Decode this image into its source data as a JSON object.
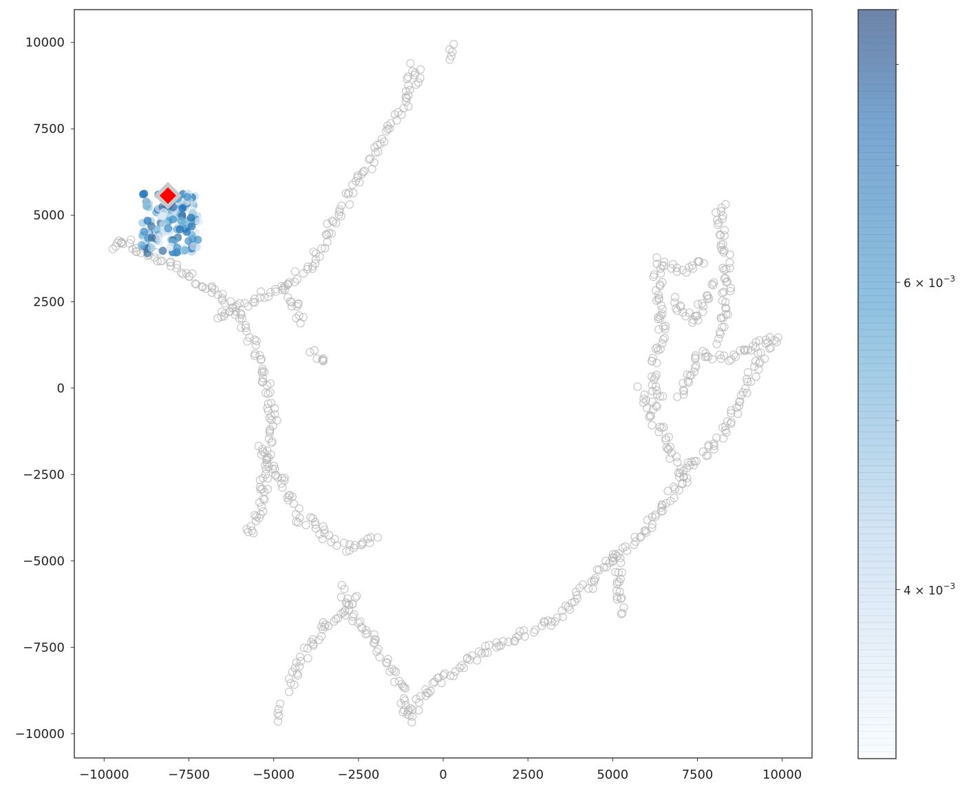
{
  "chart_data": {
    "type": "scatter",
    "title": "",
    "xlabel": "",
    "ylabel": "",
    "xlim": [
      -10880,
      10880
    ],
    "ylim": [
      -10700,
      10950
    ],
    "x_ticks": [
      {
        "value": -10000,
        "label": "−10000"
      },
      {
        "value": -7500,
        "label": "−7500"
      },
      {
        "value": -5000,
        "label": "−5000"
      },
      {
        "value": -2500,
        "label": "−2500"
      },
      {
        "value": 0,
        "label": "0"
      },
      {
        "value": 2500,
        "label": "2500"
      },
      {
        "value": 5000,
        "label": "5000"
      },
      {
        "value": 7500,
        "label": "7500"
      },
      {
        "value": 10000,
        "label": "10000"
      }
    ],
    "y_ticks": [
      {
        "value": 10000,
        "label": "10000"
      },
      {
        "value": 7500,
        "label": "7500"
      },
      {
        "value": 5000,
        "label": "5000"
      },
      {
        "value": 2500,
        "label": "2500"
      },
      {
        "value": 0,
        "label": "0"
      },
      {
        "value": -2500,
        "label": "−2500"
      },
      {
        "value": -5000,
        "label": "−5000"
      },
      {
        "value": -7500,
        "label": "−7500"
      },
      {
        "value": -10000,
        "label": "−10000"
      }
    ],
    "grid": false,
    "background_points": {
      "style": "hollow-circle",
      "color": "#b4b4b4",
      "description_paths": [
        [
          [
            -9700,
            4150
          ],
          [
            -9300,
            4100
          ],
          [
            -8900,
            3950
          ],
          [
            -8500,
            3800
          ],
          [
            -8100,
            3600
          ],
          [
            -7700,
            3400
          ],
          [
            -7300,
            3150
          ],
          [
            -6900,
            2900
          ],
          [
            -6500,
            2600
          ],
          [
            -6200,
            2300
          ],
          [
            -5900,
            1900
          ],
          [
            -5650,
            1400
          ],
          [
            -5450,
            900
          ],
          [
            -5300,
            400
          ],
          [
            -5200,
            0
          ],
          [
            -5100,
            -400
          ],
          [
            -5000,
            -800
          ],
          [
            -5050,
            -1300
          ],
          [
            -5150,
            -1800
          ],
          [
            -5250,
            -2300
          ],
          [
            -5300,
            -2800
          ],
          [
            -5350,
            -3300
          ],
          [
            -5450,
            -3800
          ],
          [
            -5600,
            -4100
          ],
          [
            -5900,
            -4250
          ]
        ],
        [
          [
            -6700,
            2100
          ],
          [
            -6200,
            2250
          ],
          [
            -5600,
            2550
          ],
          [
            -5000,
            2750
          ],
          [
            -4600,
            3000
          ],
          [
            -4200,
            3300
          ],
          [
            -3900,
            3550
          ],
          [
            -3700,
            3900
          ],
          [
            -3400,
            4500
          ],
          [
            -3100,
            5000
          ],
          [
            -2800,
            5500
          ],
          [
            -2500,
            6000
          ],
          [
            -2200,
            6450
          ],
          [
            -1900,
            7000
          ],
          [
            -1600,
            7500
          ],
          [
            -1300,
            8000
          ],
          [
            -1000,
            8500
          ],
          [
            -800,
            9000
          ],
          [
            -700,
            9300
          ]
        ],
        [
          [
            -4800,
            2800
          ],
          [
            -4500,
            2550
          ],
          [
            -4300,
            2300
          ],
          [
            -4150,
            1900
          ]
        ],
        [
          [
            -3900,
            1050
          ],
          [
            -3650,
            950
          ],
          [
            -3350,
            850
          ]
        ],
        [
          [
            -5400,
            -1800
          ],
          [
            -5100,
            -2200
          ],
          [
            -4800,
            -2600
          ],
          [
            -4600,
            -3000
          ],
          [
            -4500,
            -3350
          ],
          [
            -4300,
            -3700
          ],
          [
            -4100,
            -4000
          ]
        ],
        [
          [
            -3900,
            -3700
          ],
          [
            -3700,
            -4000
          ],
          [
            -3500,
            -4250
          ],
          [
            -3300,
            -4450
          ],
          [
            -3050,
            -4600
          ],
          [
            -2800,
            -4600
          ],
          [
            -2500,
            -4550
          ],
          [
            -2200,
            -4450
          ],
          [
            -1950,
            -4350
          ]
        ],
        [
          [
            -4550,
            -8700
          ],
          [
            -4350,
            -8200
          ],
          [
            -4100,
            -7700
          ],
          [
            -3800,
            -7250
          ],
          [
            -3550,
            -6900
          ],
          [
            -3300,
            -6700
          ],
          [
            -3000,
            -6500
          ],
          [
            -2800,
            -6300
          ],
          [
            -2600,
            -6000
          ]
        ],
        [
          [
            -3000,
            -5800
          ],
          [
            -2800,
            -6200
          ],
          [
            -2600,
            -6600
          ],
          [
            -2300,
            -7000
          ],
          [
            -2000,
            -7300
          ],
          [
            -1800,
            -7650
          ],
          [
            -1600,
            -8000
          ],
          [
            -1400,
            -8300
          ],
          [
            -1200,
            -8700
          ],
          [
            -1100,
            -9100
          ],
          [
            -1000,
            -9500
          ],
          [
            -950,
            -9700
          ]
        ],
        [
          [
            -950,
            -9500
          ],
          [
            -750,
            -9100
          ],
          [
            -550,
            -8800
          ],
          [
            -300,
            -8600
          ],
          [
            -50,
            -8400
          ],
          [
            300,
            -8200
          ],
          [
            700,
            -7900
          ],
          [
            1200,
            -7600
          ],
          [
            1700,
            -7400
          ],
          [
            2200,
            -7200
          ],
          [
            2700,
            -7000
          ],
          [
            3200,
            -6700
          ],
          [
            3700,
            -6300
          ],
          [
            4100,
            -5900
          ],
          [
            4500,
            -5500
          ],
          [
            4850,
            -5100
          ],
          [
            5100,
            -4850
          ],
          [
            5500,
            -4600
          ],
          [
            5900,
            -4200
          ],
          [
            6200,
            -3800
          ],
          [
            6500,
            -3400
          ],
          [
            6800,
            -3000
          ],
          [
            7100,
            -2600
          ],
          [
            7400,
            -2200
          ],
          [
            7700,
            -1900
          ],
          [
            8000,
            -1600
          ],
          [
            8300,
            -1200
          ],
          [
            8550,
            -700
          ],
          [
            8800,
            -250
          ],
          [
            9000,
            200
          ],
          [
            9200,
            600
          ],
          [
            9400,
            1000
          ],
          [
            9700,
            1350
          ],
          [
            9950,
            1550
          ]
        ],
        [
          [
            5100,
            -4800
          ],
          [
            5150,
            -5300
          ],
          [
            5200,
            -5800
          ],
          [
            5250,
            -6300
          ],
          [
            5250,
            -6550
          ]
        ],
        [
          [
            7100,
            -2600
          ],
          [
            6800,
            -2100
          ],
          [
            6600,
            -1600
          ],
          [
            6400,
            -1200
          ],
          [
            6200,
            -800
          ],
          [
            6000,
            -300
          ],
          [
            5800,
            0
          ]
        ],
        [
          [
            6400,
            -500
          ],
          [
            6300,
            0
          ],
          [
            6200,
            500
          ],
          [
            6250,
            900
          ],
          [
            6400,
            1400
          ],
          [
            6450,
            1900
          ],
          [
            6400,
            2500
          ],
          [
            6350,
            3000
          ],
          [
            6300,
            3400
          ],
          [
            6400,
            3750
          ],
          [
            6600,
            3550
          ],
          [
            6900,
            3500
          ],
          [
            7200,
            3450
          ],
          [
            7500,
            3600
          ],
          [
            7700,
            3800
          ]
        ],
        [
          [
            7000,
            -300
          ],
          [
            7200,
            300
          ],
          [
            7400,
            800
          ],
          [
            7700,
            1000
          ],
          [
            8000,
            900
          ],
          [
            8300,
            850
          ],
          [
            8600,
            950
          ],
          [
            8900,
            1100
          ],
          [
            9200,
            1200
          ],
          [
            9600,
            1400
          ]
        ],
        [
          [
            8200,
            1400
          ],
          [
            8250,
            2000
          ],
          [
            8300,
            2600
          ],
          [
            8400,
            3100
          ],
          [
            8350,
            3600
          ],
          [
            8300,
            4100
          ],
          [
            8200,
            4600
          ],
          [
            8150,
            5100
          ],
          [
            8250,
            5400
          ]
        ],
        [
          [
            6800,
            2600
          ],
          [
            7100,
            2200
          ],
          [
            7400,
            1900
          ],
          [
            7600,
            2300
          ],
          [
            7800,
            2700
          ],
          [
            8000,
            3100
          ]
        ],
        [
          [
            -9700,
            4150
          ],
          [
            -9500,
            4150
          ],
          [
            -9250,
            4200
          ]
        ],
        [
          [
            200,
            9600
          ],
          [
            350,
            9800
          ],
          [
            450,
            9950
          ]
        ],
        [
          [
            -1150,
            9050
          ],
          [
            -1000,
            9200
          ],
          [
            -900,
            9350
          ]
        ],
        [
          [
            -4950,
            -9550
          ],
          [
            -4800,
            -9300
          ],
          [
            -4700,
            -9200
          ]
        ]
      ]
    },
    "highlight_points": {
      "style": "filled-circle",
      "colormap": "Blues",
      "description_cluster": {
        "x_range": [
          -8900,
          -7200
        ],
        "y_range": [
          3900,
          5650
        ]
      }
    },
    "marker": {
      "shape": "diamond",
      "x": -8120,
      "y": 5570,
      "color": "#ff0000",
      "edge_color": "#c8c8c8"
    },
    "colorbar": {
      "scale": "log",
      "min": 0.0032,
      "max": 0.0086,
      "labeled_ticks": [
        {
          "value": 0.004,
          "label_mantissa": "4 × 10",
          "label_exponent": "−3"
        },
        {
          "value": 0.006,
          "label_mantissa": "6 × 10",
          "label_exponent": "−3"
        }
      ],
      "minor_ticks": [
        0.005,
        0.007,
        0.008
      ],
      "colors": [
        "#f7fbff",
        "#c6dbef",
        "#6baed6",
        "#2171b5",
        "#3d5a8a"
      ]
    }
  }
}
